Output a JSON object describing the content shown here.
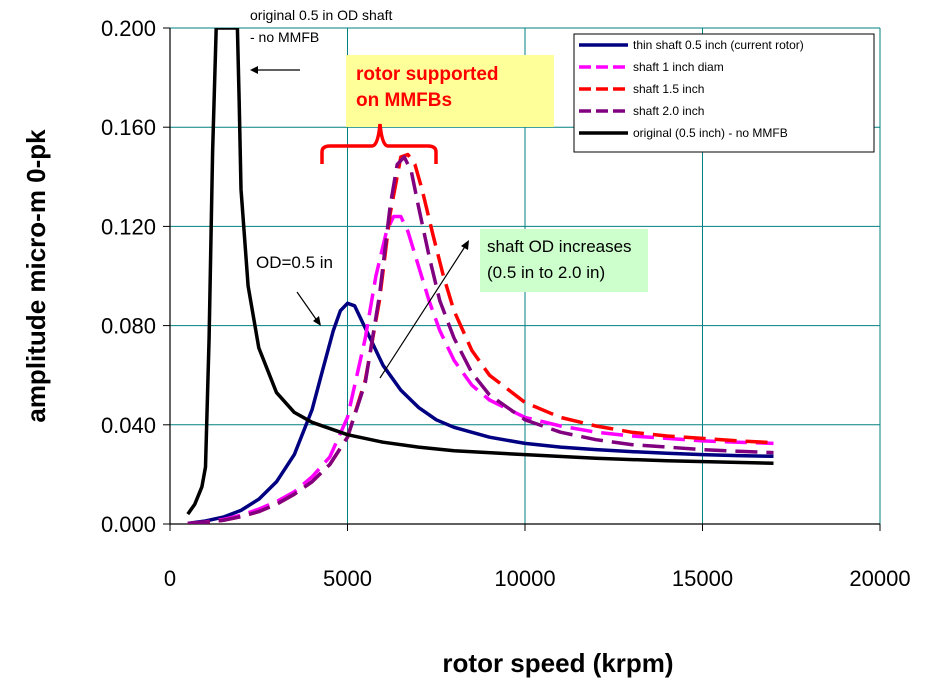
{
  "chart_data": {
    "type": "line",
    "xlabel": "rotor speed (krpm)",
    "ylabel": "amplitude micro-m 0-pk",
    "xlim": [
      0,
      20000
    ],
    "ylim": [
      0,
      0.2
    ],
    "x_ticks": [
      "0",
      "5000",
      "10000",
      "15000",
      "20000"
    ],
    "y_ticks": [
      "0.000",
      "0.040",
      "0.080",
      "0.120",
      "0.160",
      "0.200"
    ],
    "grid": "vertical-and-horizontal",
    "legend_position": "top-right",
    "series": [
      {
        "name": "thin shaft 0.5 inch (current rotor)",
        "color": "#000080",
        "dash": "solid",
        "x": [
          500,
          1000,
          1500,
          2000,
          2500,
          3000,
          3500,
          4000,
          4300,
          4600,
          4800,
          5000,
          5200,
          5400,
          5700,
          6000,
          6500,
          7000,
          7500,
          8000,
          9000,
          10000,
          11000,
          12000,
          13000,
          14000,
          15000,
          16000,
          17000
        ],
        "y": [
          0.0003,
          0.0012,
          0.0028,
          0.0055,
          0.01,
          0.017,
          0.028,
          0.046,
          0.062,
          0.078,
          0.086,
          0.089,
          0.088,
          0.082,
          0.073,
          0.064,
          0.054,
          0.047,
          0.042,
          0.039,
          0.035,
          0.0325,
          0.031,
          0.03,
          0.0292,
          0.0285,
          0.028,
          0.0276,
          0.0273
        ]
      },
      {
        "name": "shaft 1 inch diam",
        "color": "#ff00ff",
        "dash": "dashed",
        "x": [
          500,
          1000,
          1500,
          2000,
          2500,
          3000,
          3500,
          4000,
          4500,
          5000,
          5500,
          5800,
          6100,
          6300,
          6500,
          6700,
          7000,
          7300,
          7600,
          8000,
          8500,
          9000,
          10000,
          11000,
          12000,
          13000,
          14000,
          15000,
          16000,
          17000
        ],
        "y": [
          0.0002,
          0.0008,
          0.0018,
          0.0035,
          0.006,
          0.009,
          0.013,
          0.019,
          0.027,
          0.043,
          0.075,
          0.1,
          0.118,
          0.124,
          0.124,
          0.118,
          0.104,
          0.09,
          0.078,
          0.066,
          0.056,
          0.05,
          0.043,
          0.0395,
          0.037,
          0.0355,
          0.0345,
          0.0335,
          0.033,
          0.0325
        ]
      },
      {
        "name": "shaft 1.5 inch",
        "color": "#ff0000",
        "dash": "dashed",
        "x": [
          500,
          1000,
          1500,
          2000,
          2500,
          3000,
          3500,
          4000,
          4500,
          5000,
          5500,
          5900,
          6200,
          6500,
          6700,
          6900,
          7100,
          7400,
          7700,
          8000,
          8500,
          9000,
          10000,
          11000,
          12000,
          13000,
          14000,
          15000,
          16000,
          17000
        ],
        "y": [
          0.0002,
          0.0007,
          0.0015,
          0.003,
          0.005,
          0.008,
          0.012,
          0.017,
          0.024,
          0.035,
          0.058,
          0.09,
          0.125,
          0.148,
          0.149,
          0.145,
          0.135,
          0.117,
          0.1,
          0.086,
          0.07,
          0.06,
          0.049,
          0.043,
          0.0395,
          0.037,
          0.0355,
          0.0345,
          0.0335,
          0.0328
        ]
      },
      {
        "name": "shaft 2.0 inch",
        "color": "#800080",
        "dash": "dashed",
        "x": [
          500,
          1000,
          1500,
          2000,
          2500,
          3000,
          3500,
          4000,
          4500,
          5000,
          5500,
          5900,
          6200,
          6400,
          6600,
          6800,
          7000,
          7300,
          7600,
          8000,
          8500,
          9000,
          10000,
          11000,
          12000,
          13000,
          14000,
          15000,
          16000,
          17000
        ],
        "y": [
          0.0002,
          0.0007,
          0.0015,
          0.003,
          0.005,
          0.008,
          0.012,
          0.017,
          0.024,
          0.035,
          0.057,
          0.092,
          0.128,
          0.145,
          0.148,
          0.142,
          0.128,
          0.108,
          0.09,
          0.075,
          0.061,
          0.052,
          0.042,
          0.037,
          0.034,
          0.032,
          0.031,
          0.03,
          0.0293,
          0.0288
        ]
      },
      {
        "name": "original (0.5 inch) - no MMFB",
        "color": "#000000",
        "dash": "solid",
        "x": [
          500,
          700,
          900,
          1000,
          1100,
          1200,
          1300,
          1400,
          1900,
          1950,
          2000,
          2200,
          2500,
          3000,
          3500,
          4000,
          5000,
          6000,
          7000,
          8000,
          10000,
          12000,
          14000,
          17000
        ],
        "y": [
          0.004,
          0.008,
          0.015,
          0.023,
          0.075,
          0.15,
          0.2,
          0.2,
          0.2,
          0.17,
          0.135,
          0.096,
          0.071,
          0.053,
          0.045,
          0.041,
          0.036,
          0.033,
          0.031,
          0.0295,
          0.028,
          0.0265,
          0.0255,
          0.0245
        ]
      }
    ],
    "annotations": {
      "original_note_line1": "original 0.5 in OD shaft",
      "original_note_line2": "- no MMFB",
      "mmfb_note_line1": "rotor supported",
      "mmfb_note_line2": "on MMFBs",
      "od_label": "OD=0.5 in",
      "od_increase_line1": "shaft OD increases",
      "od_increase_line2": "(0.5 in to 2.0 in)"
    }
  }
}
